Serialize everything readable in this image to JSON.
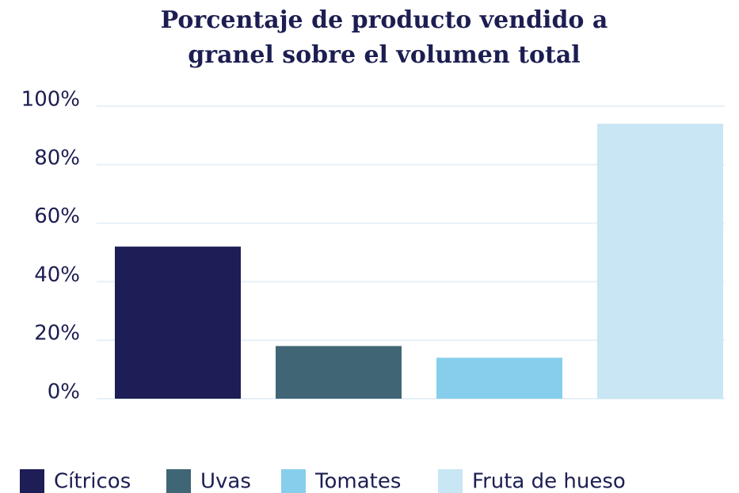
{
  "chart_data": {
    "type": "bar",
    "title": "Porcentaje de producto vendido a granel sobre el volumen total",
    "categories": [
      "Cítricos",
      "Uvas",
      "Tomates",
      "Fruta de hueso"
    ],
    "values": [
      52,
      18,
      14,
      94
    ],
    "colors": [
      "#1c1e55",
      "#406675",
      "#87ceec",
      "#c8e6f3"
    ],
    "ylim": [
      0,
      100
    ],
    "yticks": [
      {
        "value": 0,
        "label": "0%"
      },
      {
        "value": 20,
        "label": "20%"
      },
      {
        "value": 40,
        "label": "40%"
      },
      {
        "value": 60,
        "label": "60%"
      },
      {
        "value": 80,
        "label": "80%"
      },
      {
        "value": 100,
        "label": "100%"
      }
    ],
    "grid": true,
    "legend": "bottom"
  }
}
